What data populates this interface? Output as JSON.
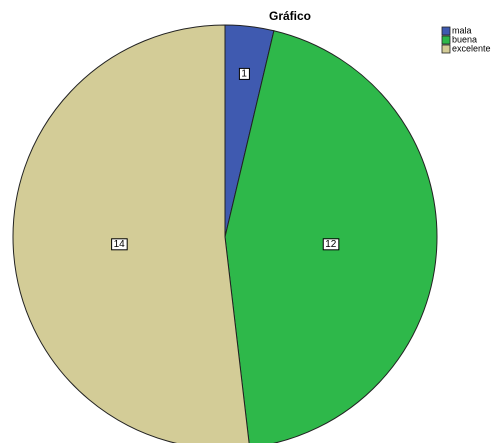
{
  "chart_data": {
    "type": "pie",
    "title": "Gráfico",
    "categories": [
      "mala",
      "buena",
      "excelente"
    ],
    "values": [
      1,
      12,
      14
    ],
    "colors": [
      "#3f5ab0",
      "#2eb84a",
      "#d3cc97"
    ],
    "legend": "top-right"
  }
}
